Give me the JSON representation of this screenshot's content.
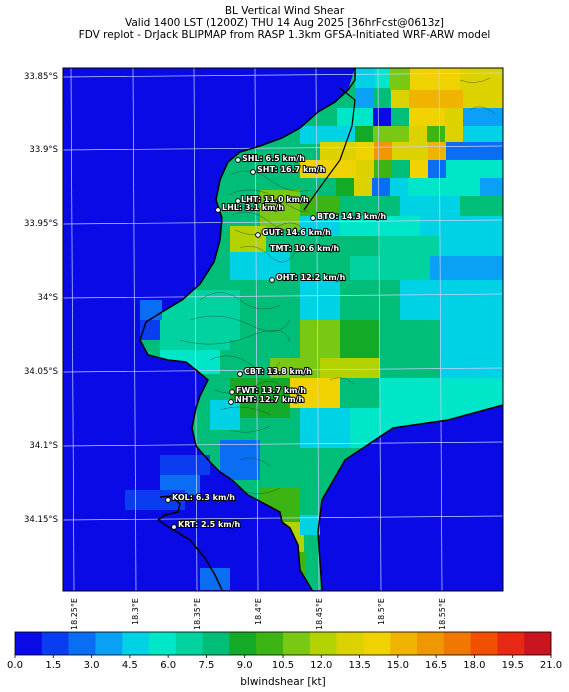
{
  "title": {
    "line1": "BL Vertical Wind Shear",
    "line2": "Valid 1400 LST (1200Z) THU 14 Aug 2025 [36hrFcst@0613z]",
    "line3": "FDV replot - DrJack BLIPMAP from RASP 1.3km GFSA-Initiated WRF-ARW model"
  },
  "map": {
    "lat_labels": [
      "33.85°S",
      "33.9°S",
      "33.95°S",
      "34°S",
      "34.05°S",
      "34.1°S",
      "34.15°S"
    ],
    "lon_labels": [
      "18.25°E",
      "18.3°E",
      "18.35°E",
      "18.4°E",
      "18.45°E",
      "18.5°E",
      "18.55°E"
    ],
    "stations": [
      {
        "name": "SHL",
        "value": "SHL: 6.5 km/h"
      },
      {
        "name": "SHT",
        "value": "SHT: 16.7 km/h"
      },
      {
        "name": "LHT",
        "value": "LHT: 11.0 km/h"
      },
      {
        "name": "LHL",
        "value": "LHL: 3.1 km/h"
      },
      {
        "name": "BTO",
        "value": "BTO: 14.3 km/h"
      },
      {
        "name": "GUT",
        "value": "GUT: 14.6 km/h"
      },
      {
        "name": "TMT",
        "value": "TMT: 10.6 km/h"
      },
      {
        "name": "OHT",
        "value": "OHT: 12.2 km/h"
      },
      {
        "name": "CBT",
        "value": "CBT: 13.8 km/h"
      },
      {
        "name": "FWT",
        "value": "FWT: 13.7 km/h"
      },
      {
        "name": "NHT",
        "value": "NHT: 12.7 km/h"
      },
      {
        "name": "KOL",
        "value": "KOL: 6.3 km/h"
      },
      {
        "name": "KRT",
        "value": "KRT: 2.5 km/h"
      }
    ]
  },
  "colorbar": {
    "label": "blwindshear [kt]",
    "tick_labels": [
      "0.0",
      "1.5",
      "3.0",
      "4.5",
      "6.0",
      "7.5",
      "9.0",
      "10.5",
      "12.0",
      "13.5",
      "15.0",
      "16.5",
      "18.0",
      "19.5",
      "21.0"
    ],
    "colors": [
      "#0a0ae6",
      "#0a3cf0",
      "#0a6ef5",
      "#0aa0f5",
      "#00d2e6",
      "#00e6c8",
      "#00d2a0",
      "#00be78",
      "#14aa28",
      "#3cb414",
      "#78c814",
      "#b4d200",
      "#dcd200",
      "#f0d200",
      "#f0b400",
      "#f09600",
      "#f07800",
      "#f05000",
      "#e62814",
      "#c8141e"
    ]
  }
}
